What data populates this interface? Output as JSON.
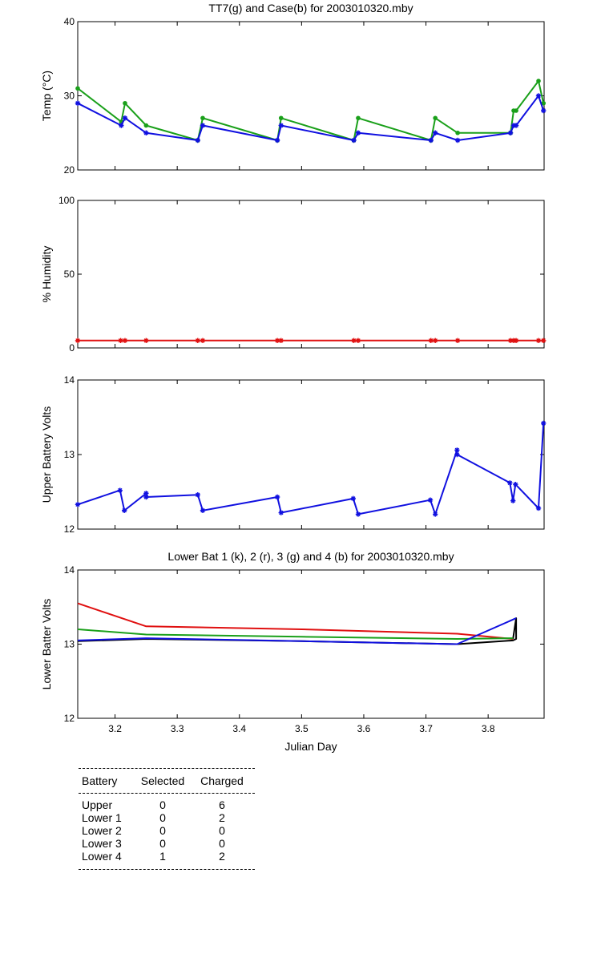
{
  "chart_data": [
    {
      "type": "line",
      "title": "TT7(g) and Case(b) for 2003010320.mby",
      "ylabel": "Temp  (°C)",
      "xlabel": "",
      "xlim": [
        3.14,
        3.89
      ],
      "ylim": [
        20,
        40
      ],
      "yticks": [
        20,
        30,
        40
      ],
      "xticks": [],
      "grid": false,
      "series": [
        {
          "color": "#1aa01a",
          "marker": "dot",
          "x": [
            3.14,
            3.21,
            3.216,
            3.25,
            3.333,
            3.341,
            3.461,
            3.467,
            3.584,
            3.591,
            3.708,
            3.715,
            3.751,
            3.836,
            3.841,
            3.845,
            3.881,
            3.889
          ],
          "y": [
            31,
            26.5,
            29,
            26,
            24,
            27,
            24,
            27,
            24,
            27,
            24,
            27,
            25,
            25,
            28,
            28,
            32,
            29
          ]
        },
        {
          "color": "#1010e0",
          "marker": "star",
          "x": [
            3.14,
            3.21,
            3.216,
            3.25,
            3.333,
            3.341,
            3.461,
            3.467,
            3.584,
            3.591,
            3.708,
            3.715,
            3.751,
            3.836,
            3.841,
            3.845,
            3.881,
            3.889
          ],
          "y": [
            29,
            26,
            27,
            25,
            24,
            26,
            24,
            26,
            24,
            25,
            24,
            25,
            24,
            25,
            26,
            26,
            30,
            28
          ]
        }
      ]
    },
    {
      "type": "line",
      "title": "",
      "ylabel": "% Humidity",
      "xlabel": "",
      "xlim": [
        3.14,
        3.89
      ],
      "ylim": [
        0,
        100
      ],
      "yticks": [
        0,
        50,
        100
      ],
      "xticks": [],
      "grid": false,
      "series": [
        {
          "color": "#e01010",
          "marker": "star",
          "x": [
            3.14,
            3.209,
            3.216,
            3.25,
            3.333,
            3.341,
            3.461,
            3.467,
            3.584,
            3.591,
            3.708,
            3.715,
            3.751,
            3.836,
            3.841,
            3.845,
            3.881,
            3.889
          ],
          "y": [
            5,
            5,
            5,
            5,
            5,
            5,
            5,
            5,
            5,
            5,
            5,
            5,
            5,
            5,
            5,
            5,
            5,
            5
          ]
        }
      ]
    },
    {
      "type": "line",
      "title": "",
      "ylabel": "Upper Battery Volts",
      "xlabel": "",
      "xlim": [
        3.14,
        3.89
      ],
      "ylim": [
        12,
        14
      ],
      "yticks": [
        12,
        13,
        14
      ],
      "xticks": [],
      "grid": false,
      "series": [
        {
          "color": "#1010e0",
          "marker": "star",
          "x": [
            3.14,
            3.208,
            3.215,
            3.25,
            3.25,
            3.333,
            3.341,
            3.461,
            3.467,
            3.583,
            3.591,
            3.707,
            3.715,
            3.75,
            3.75,
            3.835,
            3.84,
            3.844,
            3.881,
            3.889
          ],
          "y": [
            12.33,
            12.52,
            12.25,
            12.48,
            12.43,
            12.46,
            12.25,
            12.43,
            12.22,
            12.41,
            12.2,
            12.39,
            12.2,
            13.06,
            13.0,
            12.62,
            12.38,
            12.6,
            12.28,
            13.42
          ]
        }
      ]
    },
    {
      "type": "line",
      "title": "Lower Bat 1 (k), 2 (r), 3 (g) and 4 (b) for 2003010320.mby",
      "ylabel": "Lower Batter Volts",
      "xlabel": "Julian Day",
      "xlim": [
        3.14,
        3.89
      ],
      "ylim": [
        12,
        14
      ],
      "yticks": [
        12,
        13,
        14
      ],
      "xticks": [
        3.2,
        3.3,
        3.4,
        3.5,
        3.6,
        3.7,
        3.8
      ],
      "grid": false,
      "series": [
        {
          "color": "#000000",
          "marker": "none",
          "x": [
            3.14,
            3.25,
            3.5,
            3.75,
            3.84,
            3.845,
            3.845,
            3.84
          ],
          "y": [
            13.04,
            13.07,
            13.04,
            13.0,
            13.05,
            13.07,
            13.35,
            13.07
          ]
        },
        {
          "color": "#e01010",
          "marker": "none",
          "x": [
            3.14,
            3.25,
            3.5,
            3.75,
            3.84
          ],
          "y": [
            13.55,
            13.24,
            13.2,
            13.14,
            13.07
          ]
        },
        {
          "color": "#1aa01a",
          "marker": "none",
          "x": [
            3.14,
            3.25,
            3.5,
            3.75,
            3.84
          ],
          "y": [
            13.2,
            13.13,
            13.1,
            13.07,
            13.08
          ]
        },
        {
          "color": "#1010e0",
          "marker": "none",
          "x": [
            3.14,
            3.25,
            3.5,
            3.75,
            3.845
          ],
          "y": [
            13.05,
            13.08,
            13.04,
            13.0,
            13.35
          ]
        }
      ]
    }
  ],
  "table": {
    "headers": [
      "Battery",
      "Selected",
      "Charged"
    ],
    "rows": [
      [
        "Upper",
        "0",
        "6"
      ],
      [
        "Lower 1",
        "0",
        "2"
      ],
      [
        "Lower 2",
        "0",
        "0"
      ],
      [
        "Lower 3",
        "0",
        "0"
      ],
      [
        "Lower 4",
        "1",
        "2"
      ]
    ]
  }
}
